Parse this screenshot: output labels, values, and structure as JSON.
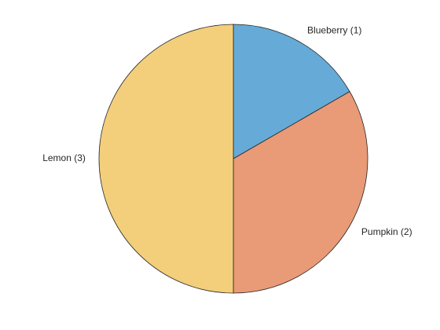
{
  "chart_data": {
    "type": "pie",
    "slices": [
      {
        "category": "Blueberry",
        "value": 1,
        "label": "Blueberry (1)",
        "color": "#66AAD7"
      },
      {
        "category": "Pumpkin",
        "value": 2,
        "label": "Pumpkin (2)",
        "color": "#E99A77"
      },
      {
        "category": "Lemon",
        "value": 3,
        "label": "Lemon (3)",
        "color": "#F3CF7B"
      }
    ],
    "start_angle_deg": 90,
    "direction": "clockwise",
    "edge_color": "#262626"
  }
}
